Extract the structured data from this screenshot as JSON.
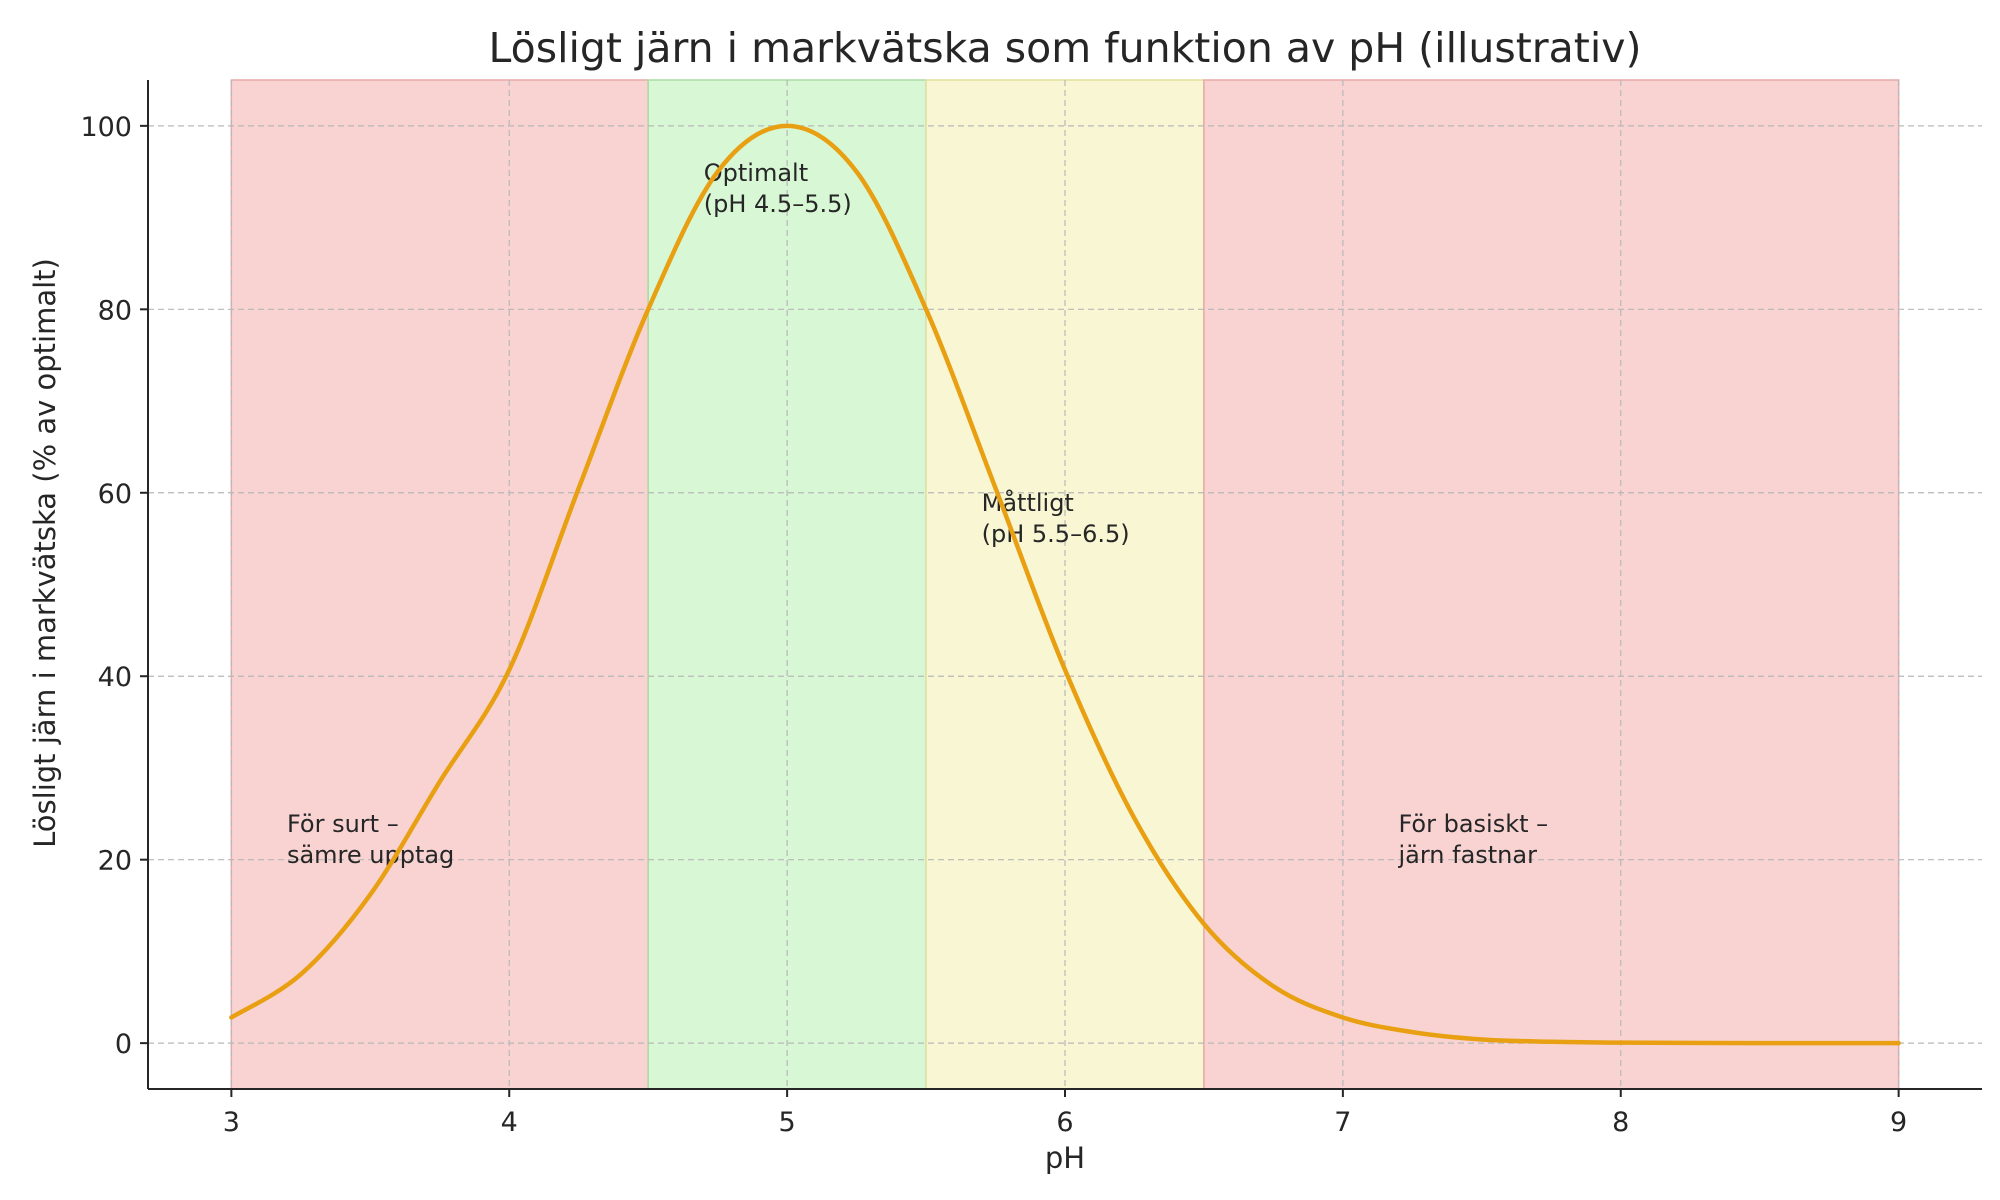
{
  "chart_data": {
    "type": "line",
    "title": "Lösligt järn i markvätska som funktion av pH (illustrativ)",
    "xlabel": "pH",
    "ylabel": "Lösligt järn i markvätska (% av optimalt)",
    "xlim": [
      2.7,
      9.3
    ],
    "ylim": [
      -5,
      105
    ],
    "xticks": [
      3,
      4,
      5,
      6,
      7,
      8,
      9
    ],
    "yticks": [
      0,
      20,
      40,
      60,
      80,
      100
    ],
    "grid": true,
    "regions": [
      {
        "x0": 3.0,
        "x1": 4.5,
        "color": "#f8d3d2",
        "edge": "#e8a9a8"
      },
      {
        "x0": 4.5,
        "x1": 5.5,
        "color": "#d8f7d5",
        "edge": "#a8dca3"
      },
      {
        "x0": 5.5,
        "x1": 6.5,
        "color": "#f8f6d3",
        "edge": "#e3df9e"
      },
      {
        "x0": 6.5,
        "x1": 9.0,
        "color": "#f8d3d2",
        "edge": "#e8a9a8"
      }
    ],
    "series": [
      {
        "color": "#e8a012",
        "x": [
          3.0,
          3.25,
          3.5,
          3.75,
          4.0,
          4.25,
          4.5,
          4.75,
          5.0,
          5.25,
          5.5,
          5.75,
          6.0,
          6.25,
          6.5,
          6.75,
          7.0,
          7.25,
          7.5,
          7.75,
          8.0,
          8.5,
          9.0
        ],
        "y": [
          2.8,
          7.5,
          16.2,
          28.5,
          40.7,
          60.5,
          80.0,
          95.0,
          100.0,
          95.0,
          80.0,
          60.5,
          40.7,
          24.5,
          13.0,
          6.2,
          2.8,
          1.2,
          0.4,
          0.15,
          0.05,
          0.0,
          0.0
        ]
      }
    ],
    "annotations": [
      {
        "x": 3.2,
        "y": 23,
        "lines": [
          "För surt –",
          "sämre upptag"
        ]
      },
      {
        "x": 4.7,
        "y": 94,
        "lines": [
          "Optimalt",
          "(pH 4.5–5.5)"
        ]
      },
      {
        "x": 5.7,
        "y": 58,
        "lines": [
          "Måttligt",
          "(pH 5.5–6.5)"
        ]
      },
      {
        "x": 7.2,
        "y": 23,
        "lines": [
          "För basiskt –",
          "järn fastnar"
        ]
      }
    ]
  }
}
